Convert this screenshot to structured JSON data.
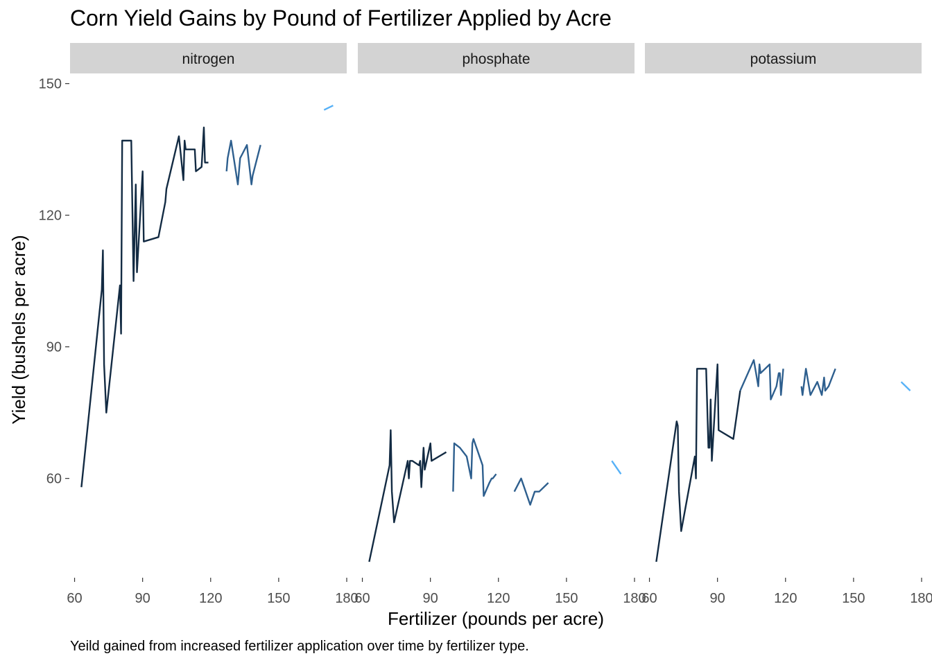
{
  "chart_data": {
    "type": "line",
    "title": "Corn Yield Gains by Pound of Fertilizer Applied by Acre",
    "caption": "Yeild gained from increased fertilizer application over time by fertilizer type.",
    "xlabel": "Fertilizer (pounds per acre)",
    "ylabel": "Yield (bushels per acre)",
    "xlim": [
      58,
      180
    ],
    "ylim": [
      38,
      152
    ],
    "x_ticks": [
      60,
      90,
      120,
      150,
      180
    ],
    "x_tick_labels": [
      "60",
      "90",
      "120",
      "150",
      "180"
    ],
    "y_ticks": [
      60,
      90,
      120,
      150
    ],
    "y_tick_labels": [
      "60",
      "90",
      "120",
      "150"
    ],
    "grid": false,
    "color_encoding": "later years drawn in lighter blue",
    "colors": {
      "dark": "#132b43",
      "mid": "#2e5f8e",
      "light": "#56b1f7",
      "strip": "#d3d3d3",
      "axis_text": "#4d4d4d"
    },
    "panels": [
      {
        "name": "nitrogen",
        "series": [
          {
            "color": "dark",
            "points": [
              [
                63,
                58
              ],
              [
                72,
                103
              ],
              [
                72.5,
                112
              ],
              [
                73,
                86
              ],
              [
                74,
                75
              ],
              [
                80,
                104
              ],
              [
                80.5,
                93
              ],
              [
                81,
                137
              ],
              [
                82,
                137
              ],
              [
                85,
                137
              ],
              [
                86,
                105
              ],
              [
                87,
                127
              ],
              [
                87.5,
                107
              ],
              [
                90,
                130
              ],
              [
                90.5,
                114
              ],
              [
                97,
                115
              ],
              [
                100,
                123
              ],
              [
                100.5,
                126
              ],
              [
                106,
                138
              ],
              [
                108,
                128
              ],
              [
                108.5,
                137
              ],
              [
                109,
                135
              ],
              [
                113,
                135
              ],
              [
                113.5,
                130
              ],
              [
                116,
                131
              ],
              [
                117,
                140
              ],
              [
                117.5,
                132
              ],
              [
                119,
                132
              ]
            ]
          },
          {
            "color": "mid",
            "points": [
              [
                127,
                130
              ],
              [
                127.5,
                133
              ],
              [
                129,
                137
              ],
              [
                132,
                127
              ],
              [
                133,
                133
              ],
              [
                134,
                134
              ],
              [
                136,
                136
              ],
              [
                138,
                127
              ],
              [
                138.5,
                129
              ],
              [
                142,
                136
              ]
            ]
          },
          {
            "color": "light",
            "points": [
              [
                170,
                144
              ],
              [
                174,
                145
              ]
            ]
          }
        ]
      },
      {
        "name": "phosphate",
        "series": [
          {
            "color": "dark",
            "points": [
              [
                63,
                41
              ],
              [
                72,
                63
              ],
              [
                72.5,
                71
              ],
              [
                73,
                57
              ],
              [
                74,
                50
              ],
              [
                80,
                64
              ],
              [
                80.5,
                60
              ],
              [
                81,
                64
              ],
              [
                82,
                64
              ],
              [
                85,
                63
              ],
              [
                85.5,
                64
              ],
              [
                86,
                58
              ],
              [
                87,
                67
              ],
              [
                87.5,
                62
              ],
              [
                90,
                68
              ],
              [
                90.5,
                64
              ],
              [
                97,
                66
              ]
            ]
          },
          {
            "color": "mid",
            "points": [
              [
                100,
                57
              ],
              [
                100.5,
                68
              ],
              [
                103,
                67
              ],
              [
                106,
                65
              ],
              [
                108,
                60
              ],
              [
                108.5,
                68
              ],
              [
                109,
                69
              ],
              [
                113,
                63
              ],
              [
                113.5,
                56
              ],
              [
                116,
                59
              ],
              [
                117,
                60
              ],
              [
                117.5,
                60
              ],
              [
                119,
                61
              ]
            ]
          },
          {
            "color": "mid",
            "points": [
              [
                127,
                57
              ],
              [
                130,
                60
              ],
              [
                134,
                54
              ],
              [
                136,
                57
              ],
              [
                138,
                57
              ],
              [
                142,
                59
              ]
            ]
          },
          {
            "color": "light",
            "points": [
              [
                170,
                64
              ],
              [
                174,
                61
              ]
            ]
          }
        ]
      },
      {
        "name": "potassium",
        "series": [
          {
            "color": "dark",
            "points": [
              [
                63,
                41
              ],
              [
                72,
                73
              ],
              [
                72.5,
                72
              ],
              [
                73,
                57
              ],
              [
                74,
                48
              ],
              [
                80,
                65
              ],
              [
                80.5,
                60
              ],
              [
                81,
                85
              ],
              [
                82,
                85
              ],
              [
                85,
                85
              ],
              [
                86,
                67
              ],
              [
                86.5,
                67
              ],
              [
                87,
                78
              ],
              [
                87.5,
                64
              ],
              [
                90,
                86
              ],
              [
                90.5,
                71
              ],
              [
                97,
                69
              ],
              [
                100,
                80
              ]
            ]
          },
          {
            "color": "mid",
            "points": [
              [
                100,
                80
              ],
              [
                106,
                87
              ],
              [
                108,
                81
              ],
              [
                108.5,
                86
              ],
              [
                109,
                84
              ],
              [
                113,
                86
              ],
              [
                113.5,
                78
              ],
              [
                116,
                81
              ],
              [
                117,
                84
              ],
              [
                117.5,
                84
              ],
              [
                118,
                79
              ],
              [
                119,
                85
              ]
            ]
          },
          {
            "color": "mid",
            "points": [
              [
                127,
                81
              ],
              [
                127.5,
                79
              ],
              [
                129,
                85
              ],
              [
                131,
                79
              ],
              [
                134,
                82
              ],
              [
                136,
                79
              ],
              [
                137,
                83
              ],
              [
                137.5,
                80
              ],
              [
                139,
                81
              ],
              [
                142,
                85
              ]
            ]
          },
          {
            "color": "light",
            "points": [
              [
                171,
                82
              ],
              [
                175,
                80
              ]
            ]
          }
        ]
      }
    ]
  }
}
